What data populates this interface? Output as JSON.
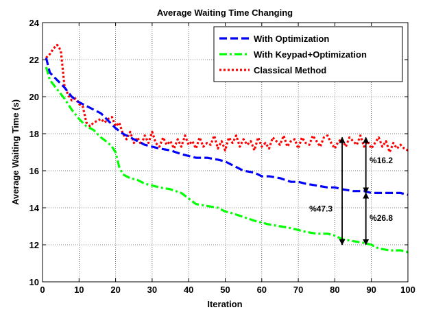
{
  "chart_data": {
    "type": "line",
    "title": "Average Waiting Time Changing",
    "xlabel": "Iteration",
    "ylabel": "Average Waiting Time (s)",
    "xlim": [
      0,
      100
    ],
    "ylim": [
      10,
      24
    ],
    "xticks": [
      0,
      10,
      20,
      30,
      40,
      50,
      60,
      70,
      80,
      90,
      100
    ],
    "yticks": [
      10,
      12,
      14,
      16,
      18,
      20,
      22,
      24
    ],
    "grid": true,
    "legend_position": "top-right",
    "series": [
      {
        "name": "With Optimization",
        "color": "#0000ff",
        "style": "dashed",
        "x": [
          1,
          2,
          4,
          6,
          8,
          10,
          12,
          14,
          16,
          18,
          20,
          22,
          24,
          26,
          28,
          30,
          32,
          35,
          38,
          40,
          42,
          45,
          48,
          50,
          52,
          55,
          58,
          60,
          62,
          65,
          68,
          70,
          72,
          75,
          78,
          80,
          82,
          85,
          88,
          90,
          92,
          95,
          98,
          100
        ],
        "values": [
          22.1,
          21.3,
          20.9,
          20.5,
          20.0,
          19.7,
          19.5,
          19.3,
          19.1,
          18.7,
          18.3,
          18.0,
          17.8,
          17.6,
          17.4,
          17.3,
          17.2,
          17.1,
          16.9,
          16.8,
          16.7,
          16.7,
          16.6,
          16.5,
          16.3,
          16.0,
          15.9,
          15.7,
          15.7,
          15.6,
          15.4,
          15.4,
          15.3,
          15.2,
          15.1,
          15.1,
          15.0,
          14.9,
          14.9,
          14.8,
          14.8,
          14.8,
          14.8,
          14.7
        ]
      },
      {
        "name": "With Keypad+Optimization",
        "color": "#00ff00",
        "style": "dash-dot",
        "x": [
          1,
          2,
          4,
          6,
          8,
          10,
          12,
          14,
          16,
          18,
          19,
          20,
          21,
          22,
          24,
          26,
          28,
          30,
          32,
          35,
          38,
          40,
          42,
          45,
          48,
          50,
          52,
          55,
          58,
          60,
          62,
          65,
          68,
          70,
          72,
          75,
          78,
          80,
          82,
          85,
          88,
          90,
          92,
          95,
          98,
          100
        ],
        "values": [
          21.6,
          20.9,
          20.4,
          19.9,
          19.3,
          18.8,
          18.4,
          18.2,
          17.8,
          17.5,
          17.3,
          17.0,
          16.2,
          15.8,
          15.6,
          15.5,
          15.3,
          15.2,
          15.1,
          15.0,
          14.8,
          14.5,
          14.2,
          14.1,
          14.0,
          13.8,
          13.7,
          13.5,
          13.3,
          13.2,
          13.1,
          13.0,
          12.9,
          12.8,
          12.7,
          12.6,
          12.6,
          12.5,
          12.3,
          12.2,
          12.1,
          12.0,
          11.8,
          11.7,
          11.7,
          11.6
        ]
      },
      {
        "name": "Classical Method",
        "color": "#ff0000",
        "style": "dotted",
        "x": [
          1,
          2,
          3,
          4,
          5,
          6,
          7,
          8,
          9,
          10,
          11,
          12,
          13,
          14,
          15,
          16,
          17,
          18,
          19,
          20,
          21,
          22,
          23,
          24,
          25,
          26,
          27,
          28,
          29,
          30,
          31,
          32,
          33,
          34,
          35,
          36,
          37,
          38,
          39,
          40,
          41,
          42,
          43,
          44,
          45,
          46,
          47,
          48,
          49,
          50,
          51,
          52,
          53,
          54,
          55,
          56,
          57,
          58,
          59,
          60,
          61,
          62,
          63,
          64,
          65,
          66,
          67,
          68,
          69,
          70,
          71,
          72,
          73,
          74,
          75,
          76,
          77,
          78,
          79,
          80,
          81,
          82,
          83,
          84,
          85,
          86,
          87,
          88,
          89,
          90,
          91,
          92,
          93,
          94,
          95,
          96,
          97,
          98,
          99,
          100
        ],
        "values": [
          22.1,
          22.3,
          22.6,
          22.8,
          22.5,
          20.6,
          20.1,
          19.8,
          19.9,
          19.6,
          19.5,
          18.6,
          18.4,
          18.6,
          18.7,
          18.8,
          18.6,
          18.8,
          18.9,
          18.4,
          18.6,
          18.0,
          17.7,
          18.1,
          17.5,
          17.8,
          17.4,
          17.9,
          17.5,
          18.1,
          17.5,
          17.3,
          17.8,
          17.4,
          17.6,
          17.2,
          17.7,
          17.3,
          17.9,
          17.4,
          17.6,
          17.2,
          17.8,
          17.3,
          17.5,
          17.4,
          17.9,
          17.2,
          17.6,
          17.1,
          17.8,
          17.5,
          17.9,
          17.3,
          17.7,
          17.4,
          17.6,
          17.1,
          17.8,
          17.3,
          17.5,
          17.2,
          17.8,
          17.6,
          17.4,
          17.9,
          17.3,
          17.6,
          17.7,
          17.2,
          17.8,
          17.5,
          17.4,
          17.9,
          17.6,
          17.3,
          17.8,
          17.9,
          17.5,
          17.2,
          17.6,
          17.7,
          17.3,
          17.8,
          17.6,
          17.4,
          17.9,
          17.3,
          17.6,
          17.2,
          17.5,
          17.8,
          17.3,
          17.6,
          17.0,
          17.5,
          17.2,
          17.4,
          17.2,
          17.1
        ]
      }
    ],
    "annotations": [
      {
        "text": "%47.3",
        "x": 82,
        "y_from": 12.0,
        "y_to": 17.8,
        "label_x": 73,
        "label_y": 13.8
      },
      {
        "text": "%16.2",
        "x": 88.5,
        "y_from": 14.8,
        "y_to": 17.8,
        "label_x": 89.5,
        "label_y": 16.4
      },
      {
        "text": "%26.8",
        "x": 88.5,
        "y_from": 12.0,
        "y_to": 14.8,
        "label_x": 89.5,
        "label_y": 13.3
      }
    ]
  }
}
